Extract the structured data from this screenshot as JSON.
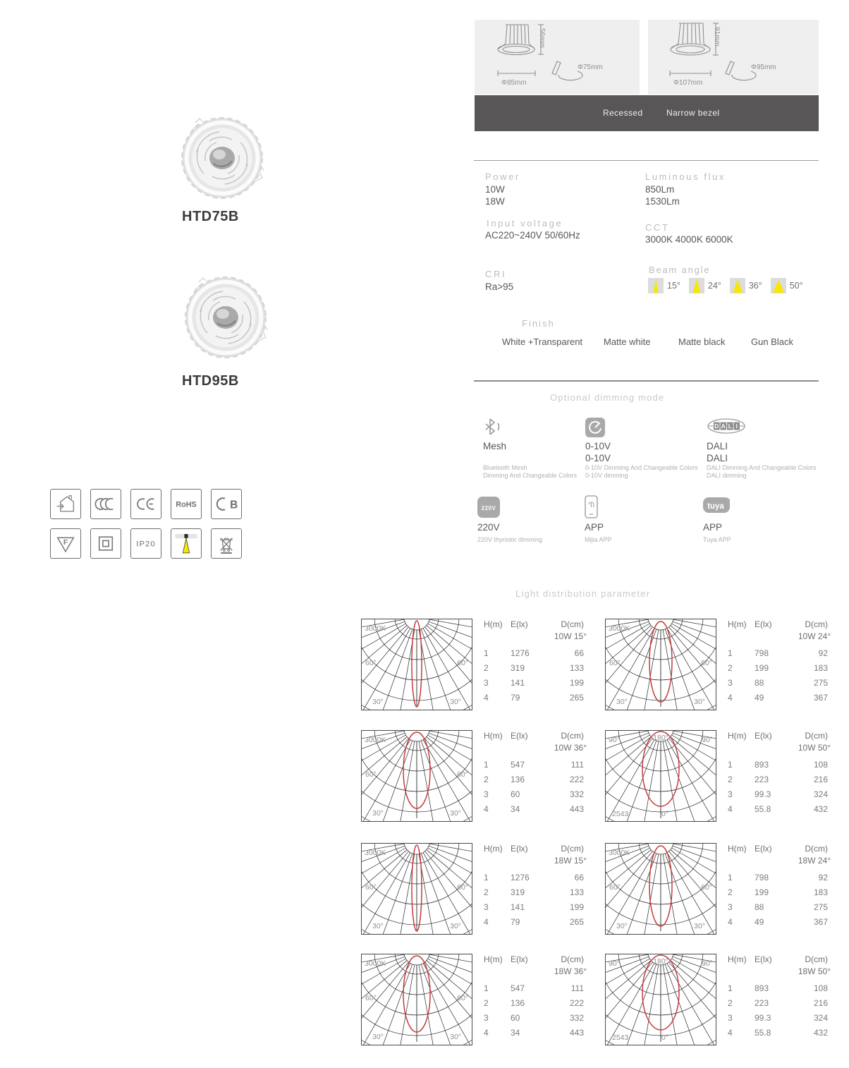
{
  "header": {
    "dimension_panels": [
      {
        "height_label": "56mm",
        "diameter_label": "Φ85mm",
        "cutout_label": "Φ75mm"
      },
      {
        "height_label": "91mm",
        "diameter_label": "Φ107mm",
        "cutout_label": "Φ95mm"
      }
    ],
    "band_labels": [
      "Recessed",
      "Narrow bezel"
    ]
  },
  "products": [
    {
      "model": "HTD75B"
    },
    {
      "model": "HTD95B"
    }
  ],
  "specs": {
    "power": {
      "label": "Power",
      "values": [
        "10W",
        "18W"
      ]
    },
    "luminous_flux": {
      "label": "Luminous flux",
      "values": [
        "850Lm",
        "1530Lm"
      ]
    },
    "input_voltage": {
      "label": "Input voltage",
      "value": "AC220~240V 50/60Hz"
    },
    "cct": {
      "label": "CCT",
      "value": "3000K  4000K  6000K"
    },
    "cri": {
      "label": "CRI",
      "value": "Ra>95"
    },
    "beam_angle": {
      "label": "Beam angle",
      "options": [
        "15°",
        "24°",
        "36°",
        "50°"
      ]
    }
  },
  "finish": {
    "label": "Finish",
    "options": [
      "White +Transparent",
      "Matte white",
      "Matte black",
      "Gun Black"
    ]
  },
  "dimming": {
    "title": "Optional dimming mode",
    "modes": [
      {
        "name": "mesh",
        "titles": [
          "Mesh"
        ],
        "descs": [
          "Bluetooth Mesh",
          "Dimming And Changeable Colors"
        ]
      },
      {
        "name": "0-10v",
        "titles": [
          "0-10V",
          "0-10V"
        ],
        "descs": [
          "0-10V Dimming And Changeable Colors",
          "0-10V dimming"
        ]
      },
      {
        "name": "dali",
        "titles": [
          "DALI",
          "DALI"
        ],
        "descs": [
          "DALI  Dimming And Changeable Colors",
          "DALI dimming"
        ]
      },
      {
        "name": "220v",
        "badge": "220V",
        "titles": [
          "220V"
        ],
        "descs": [
          "220V thyristor dimming"
        ]
      },
      {
        "name": "mijia",
        "titles": [
          "APP"
        ],
        "descs": [
          "Mijia APP"
        ]
      },
      {
        "name": "tuya",
        "badge": "tuya",
        "titles": [
          "APP"
        ],
        "descs": [
          "Tuya APP"
        ]
      }
    ]
  },
  "certifications": [
    {
      "id": "indoor-use",
      "label": ""
    },
    {
      "id": "ccc",
      "label": "CCC"
    },
    {
      "id": "ce",
      "label": "CE"
    },
    {
      "id": "rohs",
      "label": "RoHS"
    },
    {
      "id": "cb",
      "label": "CB"
    },
    {
      "id": "f-mark",
      "label": "F"
    },
    {
      "id": "class-ii",
      "label": ""
    },
    {
      "id": "ip20",
      "label": "IP20"
    },
    {
      "id": "recessed-beam",
      "label": ""
    },
    {
      "id": "weee-bin",
      "label": ""
    }
  ],
  "light_distribution": {
    "title": "Light distribution parameter",
    "table_headers": [
      "H(m)",
      "E(lx)",
      "D(cm)"
    ],
    "charts": [
      {
        "subtitle": "10W 15°",
        "beam": 15,
        "frame": "A",
        "labels": {
          "top_left": "3000K",
          "mid_left": "60°",
          "mid_right": "60°",
          "bottom_left": "30°",
          "bottom_right": "30°"
        },
        "rows": [
          [
            "1",
            "1276",
            "66"
          ],
          [
            "2",
            "319",
            "133"
          ],
          [
            "3",
            "141",
            "199"
          ],
          [
            "4",
            "79",
            "265"
          ]
        ]
      },
      {
        "subtitle": "10W 24°",
        "beam": 24,
        "frame": "A",
        "labels": {
          "top_left": "3000K",
          "mid_left": "60°",
          "mid_right": "60°",
          "bottom_left": "30°",
          "bottom_right": "30°"
        },
        "rows": [
          [
            "1",
            "798",
            "92"
          ],
          [
            "2",
            "199",
            "183"
          ],
          [
            "3",
            "88",
            "275"
          ],
          [
            "4",
            "49",
            "367"
          ]
        ]
      },
      {
        "subtitle": "10W 36°",
        "beam": 36,
        "frame": "A",
        "labels": {
          "top_left": "3000K",
          "mid_left": "60°",
          "mid_right": "60°",
          "bottom_left": "30°",
          "bottom_right": "30°"
        },
        "rows": [
          [
            "1",
            "547",
            "111"
          ],
          [
            "2",
            "136",
            "222"
          ],
          [
            "3",
            "60",
            "332"
          ],
          [
            "4",
            "34",
            "443"
          ]
        ]
      },
      {
        "subtitle": "10W 50°",
        "beam": 50,
        "frame": "B",
        "labels": {
          "top_left": "90°",
          "top_center": "180°",
          "top_right": "90°",
          "bottom_left": "2543",
          "bottom_center": "0°"
        },
        "rows": [
          [
            "1",
            "893",
            "108"
          ],
          [
            "2",
            "223",
            "216"
          ],
          [
            "3",
            "99.3",
            "324"
          ],
          [
            "4",
            "55.8",
            "432"
          ]
        ]
      },
      {
        "subtitle": "18W 15°",
        "beam": 15,
        "frame": "A",
        "labels": {
          "top_left": "3000K",
          "mid_left": "60°",
          "mid_right": "60°",
          "bottom_left": "30°",
          "bottom_right": "30°"
        },
        "rows": [
          [
            "1",
            "1276",
            "66"
          ],
          [
            "2",
            "319",
            "133"
          ],
          [
            "3",
            "141",
            "199"
          ],
          [
            "4",
            "79",
            "265"
          ]
        ]
      },
      {
        "subtitle": "18W 24°",
        "beam": 24,
        "frame": "A",
        "labels": {
          "top_left": "3000K",
          "mid_left": "60°",
          "mid_right": "60°",
          "bottom_left": "30°",
          "bottom_right": "30°"
        },
        "rows": [
          [
            "1",
            "798",
            "92"
          ],
          [
            "2",
            "199",
            "183"
          ],
          [
            "3",
            "88",
            "275"
          ],
          [
            "4",
            "49",
            "367"
          ]
        ]
      },
      {
        "subtitle": "18W 36°",
        "beam": 36,
        "frame": "A",
        "labels": {
          "top_left": "3000K",
          "mid_left": "60°",
          "mid_right": "60°",
          "bottom_left": "30°",
          "bottom_right": "30°"
        },
        "rows": [
          [
            "1",
            "547",
            "111"
          ],
          [
            "2",
            "136",
            "222"
          ],
          [
            "3",
            "60",
            "332"
          ],
          [
            "4",
            "34",
            "443"
          ]
        ]
      },
      {
        "subtitle": "18W 50°",
        "beam": 50,
        "frame": "B",
        "labels": {
          "top_left": "90°",
          "top_center": "180°",
          "top_right": "90°",
          "bottom_left": "2543",
          "bottom_center": "0°"
        },
        "rows": [
          [
            "1",
            "893",
            "108"
          ],
          [
            "2",
            "223",
            "216"
          ],
          [
            "3",
            "99.3",
            "324"
          ],
          [
            "4",
            "55.8",
            "432"
          ]
        ]
      }
    ]
  },
  "colors": {
    "band": "#585657",
    "panel": "#eeefee",
    "beam_yellow": "#f6e70a",
    "curve_red": "#c43c3c"
  }
}
